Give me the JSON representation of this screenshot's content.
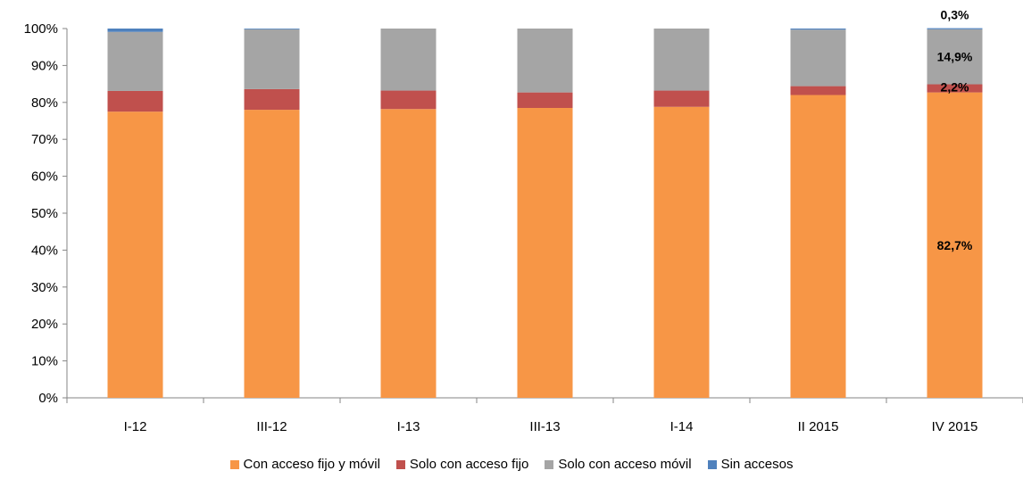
{
  "chart_data": {
    "type": "bar",
    "stacked": true,
    "categories": [
      "I-12",
      "III-12",
      "I-13",
      "III-13",
      "I-14",
      "II 2015",
      "IV 2015"
    ],
    "series": [
      {
        "name": "Con acceso fijo y móvil",
        "color": "#F79646",
        "values": [
          77.5,
          78.0,
          78.2,
          78.5,
          78.8,
          82.0,
          82.7
        ]
      },
      {
        "name": "Solo con acceso fijo",
        "color": "#C0504D",
        "values": [
          5.6,
          5.6,
          5.0,
          4.2,
          4.4,
          2.4,
          2.2
        ]
      },
      {
        "name": "Solo con acceso móvil",
        "color": "#A5A5A5",
        "values": [
          16.0,
          16.2,
          16.8,
          17.3,
          16.8,
          15.3,
          14.9
        ]
      },
      {
        "name": "Sin accesos",
        "color": "#4F81BD",
        "values": [
          0.9,
          0.2,
          0.0,
          0.0,
          0.0,
          0.3,
          0.3
        ]
      }
    ],
    "ylim": [
      0,
      100
    ],
    "yticks": [
      "0%",
      "10%",
      "20%",
      "30%",
      "40%",
      "50%",
      "60%",
      "70%",
      "80%",
      "90%",
      "100%"
    ],
    "data_labels": [
      {
        "category": "IV 2015",
        "series": "Con acceso fijo y móvil",
        "text": "82,7%"
      },
      {
        "category": "IV 2015",
        "series": "Solo con acceso fijo",
        "text": "2,2%"
      },
      {
        "category": "IV 2015",
        "series": "Solo con acceso móvil",
        "text": "14,9%"
      },
      {
        "category": "IV 2015",
        "series": "Sin accesos",
        "text": "0,3%"
      }
    ],
    "grid": false,
    "legend": "bottom"
  }
}
